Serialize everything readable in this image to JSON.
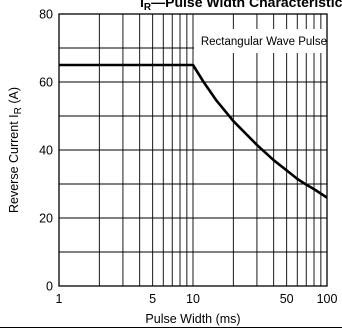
{
  "chart_data": {
    "type": "line",
    "title_main": "I",
    "title_sub": "R",
    "title_rest": "—Pulse Width  Characteristics",
    "xlabel": "Pulse Width (ms)",
    "ylabel_main": "Reverse Current  I",
    "ylabel_sub": "R",
    "ylabel_unit": " (A)",
    "x_scale": "log",
    "xlim": [
      1,
      100
    ],
    "ylim": [
      0,
      80
    ],
    "x_ticks": [
      {
        "value": 1,
        "label": "1"
      },
      {
        "value": 5,
        "label": "5"
      },
      {
        "value": 10,
        "label": "10"
      },
      {
        "value": 50,
        "label": "50"
      },
      {
        "value": 100,
        "label": "100"
      }
    ],
    "y_ticks": [
      {
        "value": 0,
        "label": "0"
      },
      {
        "value": 20,
        "label": "20"
      },
      {
        "value": 40,
        "label": "40"
      },
      {
        "value": 60,
        "label": "60"
      },
      {
        "value": 80,
        "label": "80"
      }
    ],
    "grid": true,
    "legend_text": "Rectangular Wave Pulse",
    "legend_position": "top-right",
    "series": [
      {
        "x": [
          1,
          2,
          5,
          10,
          12,
          15,
          20,
          30,
          40,
          50,
          60,
          70,
          80,
          100
        ],
        "y": [
          65,
          65,
          65,
          65,
          60,
          54.5,
          48.5,
          41.5,
          37,
          34,
          31.5,
          29.8,
          28.5,
          26
        ]
      }
    ]
  }
}
